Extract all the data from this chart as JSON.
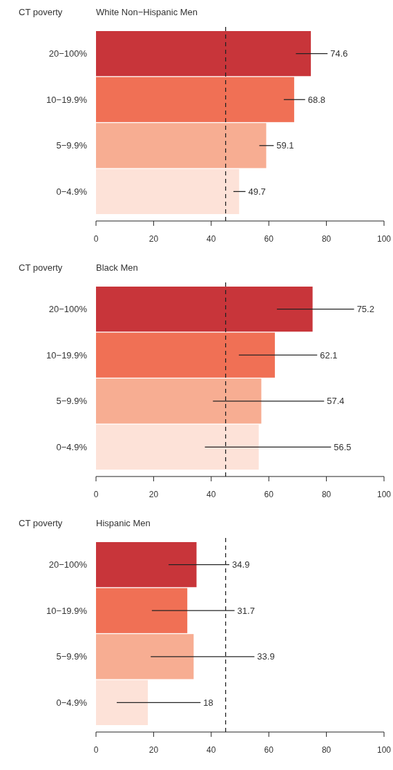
{
  "chart_data": [
    {
      "type": "bar",
      "orientation": "horizontal",
      "title": "White Non−Hispanic Men",
      "ylabel": "CT poverty",
      "categories": [
        "20−100%",
        "10−19.9%",
        "5−9.9%",
        "0−4.9%"
      ],
      "colors": [
        "#c8353a",
        "#f07055",
        "#f7ad92",
        "#fde2d8"
      ],
      "values": [
        74.6,
        68.8,
        59.1,
        49.7
      ],
      "errors": [
        [
          69.4,
          80.4
        ],
        [
          65.2,
          72.6
        ],
        [
          56.7,
          61.7
        ],
        [
          47.7,
          51.9
        ]
      ],
      "data_labels": true,
      "xlim": [
        0,
        100
      ],
      "xticks": [
        0,
        20,
        40,
        60,
        80,
        100
      ],
      "ref_lines": [
        {
          "axis": "x",
          "value": 45,
          "line_style": "dashed"
        }
      ]
    },
    {
      "type": "bar",
      "orientation": "horizontal",
      "title": "Black Men",
      "ylabel": "CT poverty",
      "categories": [
        "20−100%",
        "10−19.9%",
        "5−9.9%",
        "0−4.9%"
      ],
      "colors": [
        "#c8353a",
        "#f07055",
        "#f7ad92",
        "#fde2d8"
      ],
      "values": [
        75.2,
        62.1,
        57.4,
        56.5
      ],
      "errors": [
        [
          62.8,
          89.6
        ],
        [
          49.6,
          76.8
        ],
        [
          40.6,
          79.2
        ],
        [
          37.8,
          81.6
        ]
      ],
      "xlim": [
        0,
        100
      ],
      "xticks": [
        0,
        20,
        40,
        60,
        80,
        100
      ],
      "ref_lines": [
        {
          "axis": "x",
          "value": 45,
          "line_style": "dashed"
        }
      ],
      "annotations": [
        {
          "text": "75.2",
          "x": 89.6,
          "y": "20−100%"
        },
        {
          "text": "62.1",
          "x": 76.8,
          "y": "10−19.9%"
        },
        {
          "text": "57.4",
          "x": 79.2,
          "y": "5−9.9%"
        },
        {
          "text": "56.5",
          "x": 81.6,
          "y": "0−4.9%"
        }
      ]
    },
    {
      "type": "bar",
      "orientation": "horizontal",
      "title": "Hispanic Men",
      "ylabel": "CT poverty",
      "categories": [
        "20−100%",
        "10−19.9%",
        "5−9.9%",
        "0−4.9%"
      ],
      "colors": [
        "#c8353a",
        "#f07055",
        "#f7ad92",
        "#fde2d8"
      ],
      "values": [
        34.9,
        31.7,
        33.9,
        18
      ],
      "errors": [
        [
          25.2,
          46.3
        ],
        [
          19.4,
          48.1
        ],
        [
          19.0,
          55.0
        ],
        [
          7.2,
          36.3
        ]
      ],
      "xlim": [
        0,
        100
      ],
      "xticks": [
        0,
        20,
        40,
        60,
        80,
        100
      ],
      "ref_lines": [
        {
          "axis": "x",
          "value": 45,
          "line_style": "dashed"
        }
      ],
      "annotations": [
        {
          "text": "34.9",
          "x": 46.3,
          "y": "20−100%"
        },
        {
          "text": "31.7",
          "x": 48.1,
          "y": "10−19.9%"
        },
        {
          "text": "33.9",
          "x": 55.0,
          "y": "5−9.9%"
        },
        {
          "text": "18",
          "x": 36.3,
          "y": "0−4.9%"
        }
      ]
    }
  ]
}
